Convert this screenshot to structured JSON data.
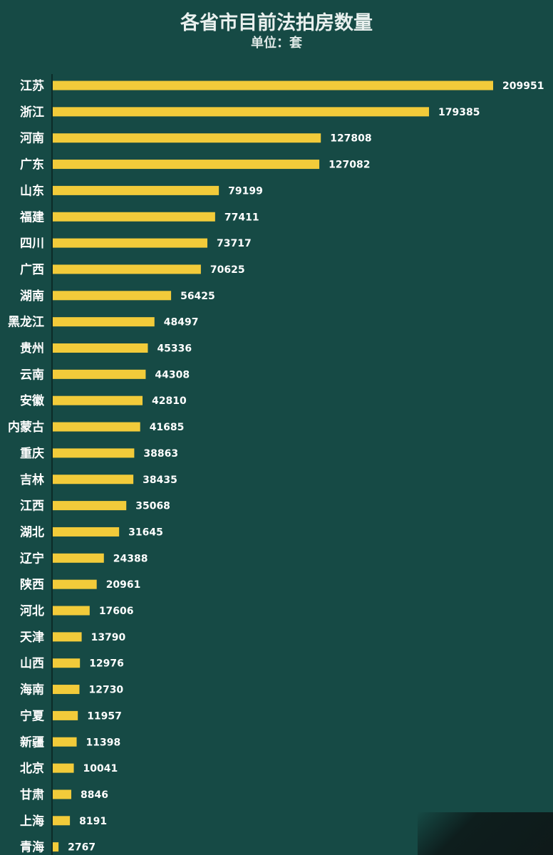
{
  "title": "各省市目前法拍房数量",
  "subtitle": "单位：套",
  "colors": {
    "background": "#164a45",
    "bar": "#f2cb3a",
    "text": "#ffffff"
  },
  "chart_data": {
    "type": "bar",
    "orientation": "horizontal",
    "title": "各省市目前法拍房数量",
    "subtitle": "单位：套",
    "categories": [
      "江苏",
      "浙江",
      "河南",
      "广东",
      "山东",
      "福建",
      "四川",
      "广西",
      "湖南",
      "黑龙江",
      "贵州",
      "云南",
      "安徽",
      "内蒙古",
      "重庆",
      "吉林",
      "江西",
      "湖北",
      "辽宁",
      "陕西",
      "河北",
      "天津",
      "山西",
      "海南",
      "宁夏",
      "新疆",
      "北京",
      "甘肃",
      "上海",
      "青海"
    ],
    "values": [
      209951,
      179385,
      127808,
      127082,
      79199,
      77411,
      73717,
      70625,
      56425,
      48497,
      45336,
      44308,
      42810,
      41685,
      38863,
      38435,
      35068,
      31645,
      24388,
      20961,
      17606,
      13790,
      12976,
      12730,
      11957,
      11398,
      10041,
      8846,
      8191,
      2767
    ],
    "xlim": [
      0,
      209951
    ],
    "grid": false,
    "legend": "none"
  }
}
